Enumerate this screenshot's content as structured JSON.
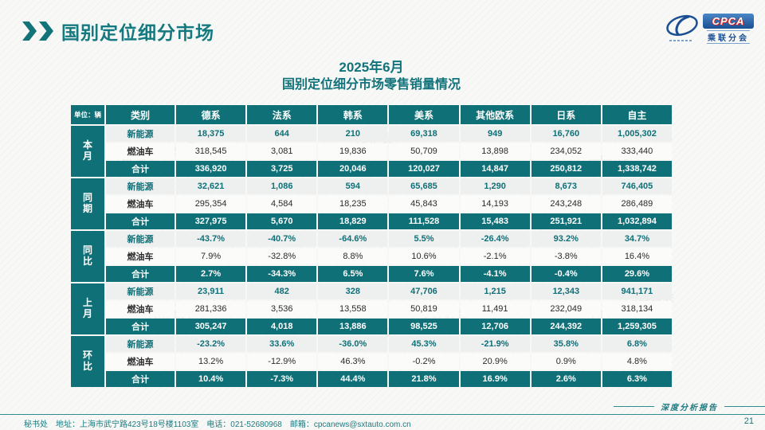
{
  "slide": {
    "title": "国别定位细分市场",
    "subtitle_line1": "2025年6月",
    "subtitle_line2": "国别定位细分市场零售销量情况",
    "footer_left": "秘书处　地址：上海市武宁路423号18号楼1103室　电话：021-52680968　邮箱：cpcanews@sxtauto.com.cn",
    "footer_right": "深度分析报告",
    "page_number": "21"
  },
  "logo": {
    "acronym": "CPCA",
    "name": "乘联分会"
  },
  "colors": {
    "accent_teal": "#0f7077",
    "title_teal": "#147a80",
    "logo_blue": "#1b4f93",
    "logo_red": "#cc2222"
  },
  "table": {
    "unit_label": "单位：辆",
    "columns": [
      "类别",
      "德系",
      "法系",
      "韩系",
      "美系",
      "其他欧系",
      "日系",
      "自主"
    ],
    "groups": [
      {
        "label": "本月",
        "rows": [
          {
            "category": "新能源",
            "values": [
              "18,375",
              "644",
              "210",
              "69,318",
              "949",
              "16,760",
              "1,005,302"
            ]
          },
          {
            "category": "燃油车",
            "values": [
              "318,545",
              "3,081",
              "19,836",
              "50,709",
              "13,898",
              "234,052",
              "333,440"
            ]
          },
          {
            "category": "合计",
            "values": [
              "336,920",
              "3,725",
              "20,046",
              "120,027",
              "14,847",
              "250,812",
              "1,338,742"
            ]
          }
        ]
      },
      {
        "label": "同期",
        "rows": [
          {
            "category": "新能源",
            "values": [
              "32,621",
              "1,086",
              "594",
              "65,685",
              "1,290",
              "8,673",
              "746,405"
            ]
          },
          {
            "category": "燃油车",
            "values": [
              "295,354",
              "4,584",
              "18,235",
              "45,843",
              "14,193",
              "243,248",
              "286,489"
            ]
          },
          {
            "category": "合计",
            "values": [
              "327,975",
              "5,670",
              "18,829",
              "111,528",
              "15,483",
              "251,921",
              "1,032,894"
            ]
          }
        ]
      },
      {
        "label": "同比",
        "rows": [
          {
            "category": "新能源",
            "values": [
              "-43.7%",
              "-40.7%",
              "-64.6%",
              "5.5%",
              "-26.4%",
              "93.2%",
              "34.7%"
            ]
          },
          {
            "category": "燃油车",
            "values": [
              "7.9%",
              "-32.8%",
              "8.8%",
              "10.6%",
              "-2.1%",
              "-3.8%",
              "16.4%"
            ]
          },
          {
            "category": "合计",
            "values": [
              "2.7%",
              "-34.3%",
              "6.5%",
              "7.6%",
              "-4.1%",
              "-0.4%",
              "29.6%"
            ]
          }
        ]
      },
      {
        "label": "上月",
        "rows": [
          {
            "category": "新能源",
            "values": [
              "23,911",
              "482",
              "328",
              "47,706",
              "1,215",
              "12,343",
              "941,171"
            ]
          },
          {
            "category": "燃油车",
            "values": [
              "281,336",
              "3,536",
              "13,558",
              "50,819",
              "11,491",
              "232,049",
              "318,134"
            ]
          },
          {
            "category": "合计",
            "values": [
              "305,247",
              "4,018",
              "13,886",
              "98,525",
              "12,706",
              "244,392",
              "1,259,305"
            ]
          }
        ]
      },
      {
        "label": "环比",
        "rows": [
          {
            "category": "新能源",
            "values": [
              "-23.2%",
              "33.6%",
              "-36.0%",
              "45.3%",
              "-21.9%",
              "35.8%",
              "6.8%"
            ]
          },
          {
            "category": "燃油车",
            "values": [
              "13.2%",
              "-12.9%",
              "46.3%",
              "-0.2%",
              "20.9%",
              "0.9%",
              "4.8%"
            ]
          },
          {
            "category": "合计",
            "values": [
              "10.4%",
              "-7.3%",
              "44.4%",
              "21.8%",
              "16.9%",
              "2.6%",
              "6.3%"
            ]
          }
        ]
      }
    ]
  },
  "watermark_text": "CPCA 乘联分会"
}
